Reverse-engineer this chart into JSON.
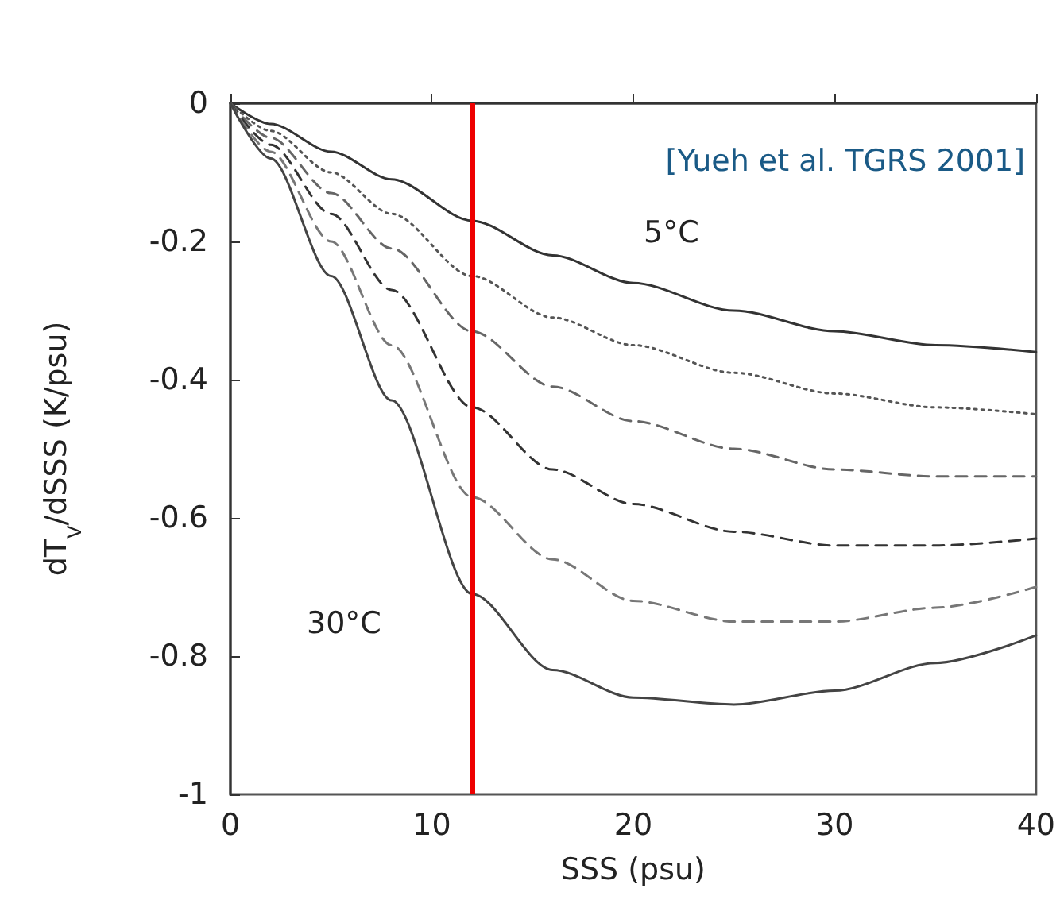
{
  "chart_data": {
    "type": "line",
    "xlabel": "SSS (psu)",
    "ylabel": "dT$_{V}$/dSSS (K/psu)",
    "x": [
      0,
      2,
      5,
      8,
      12,
      16,
      20,
      25,
      30,
      35,
      40
    ],
    "series": [
      {
        "color": "#333333",
        "line_style": "solid",
        "values": [
          0,
          -0.03,
          -0.07,
          -0.11,
          -0.17,
          -0.22,
          -0.26,
          -0.3,
          -0.33,
          -0.35,
          -0.36
        ]
      },
      {
        "color": "#555555",
        "line_style": "dotted",
        "values": [
          0,
          -0.04,
          -0.1,
          -0.16,
          -0.25,
          -0.31,
          -0.35,
          -0.39,
          -0.42,
          -0.44,
          -0.45
        ]
      },
      {
        "color": "#666666",
        "line_style": "dashed",
        "values": [
          0,
          -0.05,
          -0.13,
          -0.21,
          -0.33,
          -0.41,
          -0.46,
          -0.5,
          -0.53,
          -0.54,
          -0.54
        ]
      },
      {
        "color": "#333333",
        "line_style": "dashed",
        "values": [
          0,
          -0.06,
          -0.16,
          -0.27,
          -0.44,
          -0.53,
          -0.58,
          -0.62,
          -0.64,
          -0.64,
          -0.63
        ]
      },
      {
        "color": "#777777",
        "line_style": "dashed",
        "values": [
          0,
          -0.07,
          -0.2,
          -0.35,
          -0.57,
          -0.66,
          -0.72,
          -0.75,
          -0.75,
          -0.73,
          -0.7
        ]
      },
      {
        "color": "#444444",
        "line_style": "solid",
        "values": [
          0,
          -0.08,
          -0.25,
          -0.43,
          -0.71,
          -0.82,
          -0.86,
          -0.87,
          -0.85,
          -0.81,
          -0.77
        ]
      }
    ],
    "xlim": [
      0,
      40
    ],
    "xticks": [
      0,
      10,
      20,
      30,
      40
    ],
    "ylim": [
      -1,
      0
    ],
    "yticks": [
      -1,
      -0.8,
      -0.6,
      -0.4,
      -0.2,
      0
    ],
    "grid": false,
    "marker": "none",
    "ref_lines": [
      {
        "axis": "x",
        "value": 12,
        "color": "#ee0000"
      }
    ],
    "annotations": [
      "[Yueh et al. TGRS 2001]",
      "5°C",
      "30°C"
    ]
  }
}
